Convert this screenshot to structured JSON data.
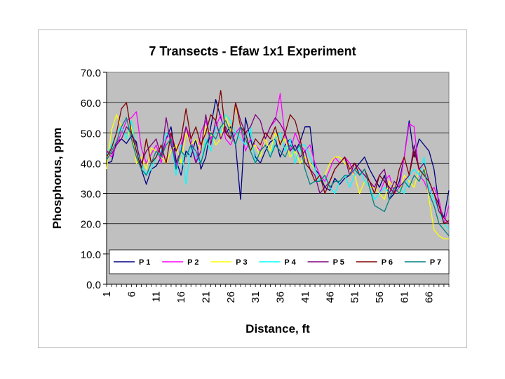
{
  "chart_data": {
    "type": "line",
    "title": "7 Transects - Efaw 1x1 Experiment",
    "xlabel": "Distance, ft",
    "ylabel": "Phosphorus, ppm",
    "ylim": [
      0,
      70
    ],
    "xlim": [
      1,
      70
    ],
    "yticks": [
      "0.0",
      "10.0",
      "20.0",
      "30.0",
      "40.0",
      "50.0",
      "60.0",
      "70.0"
    ],
    "xticks": [
      1,
      6,
      11,
      16,
      21,
      26,
      31,
      36,
      41,
      46,
      51,
      56,
      61,
      66
    ],
    "grid": true,
    "plot_background": "#c0c0c0",
    "legend_position": "bottom-inside",
    "series": [
      {
        "name": "P 1",
        "color": "#000080",
        "values": [
          40,
          40.5,
          47,
          48,
          46.5,
          49,
          47,
          38,
          33,
          38,
          39,
          42,
          48,
          52,
          41,
          36,
          44,
          42,
          48,
          38,
          42,
          52,
          61,
          55,
          50,
          52,
          46,
          28,
          55,
          48,
          42,
          40,
          44,
          47,
          48,
          42,
          46,
          48,
          44,
          47,
          52,
          52,
          38,
          36,
          32,
          31,
          35,
          33,
          35,
          36,
          38,
          40,
          42,
          38,
          35,
          32,
          36,
          28,
          30,
          34,
          42,
          54,
          42,
          48,
          46,
          44,
          38,
          26,
          22,
          31
        ]
      },
      {
        "name": "P 2",
        "color": "#ff00ff",
        "values": [
          44,
          42,
          46,
          50,
          54,
          55,
          57,
          45,
          40,
          43,
          46,
          40,
          48,
          50,
          39,
          46,
          52,
          48,
          40,
          50,
          54,
          48,
          52,
          56,
          48,
          46,
          50,
          52,
          44,
          48,
          46,
          44,
          48,
          52,
          54,
          63,
          48,
          44,
          50,
          46,
          44,
          46,
          40,
          36,
          34,
          38,
          42,
          40,
          42,
          40,
          36,
          38,
          36,
          34,
          32,
          30,
          34,
          36,
          30,
          32,
          42,
          53,
          52,
          36,
          34,
          30,
          32,
          28,
          20,
          26
        ]
      },
      {
        "name": "P 3",
        "color": "#ffff00",
        "values": [
          38,
          51,
          56,
          52,
          48,
          52,
          40,
          42,
          38,
          45,
          44,
          42,
          40,
          44,
          46,
          40,
          50,
          46,
          48,
          44,
          52,
          50,
          46,
          48,
          56,
          50,
          59,
          52,
          48,
          44,
          46,
          42,
          48,
          44,
          50,
          46,
          48,
          42,
          44,
          40,
          42,
          40,
          38,
          34,
          36,
          40,
          42,
          42,
          40,
          38,
          36,
          30,
          34,
          32,
          32,
          30,
          28,
          34,
          32,
          30,
          36,
          34,
          32,
          38,
          40,
          28,
          18,
          16,
          15,
          15
        ]
      },
      {
        "name": "P 4",
        "color": "#00ffff",
        "values": [
          42,
          46,
          50,
          52,
          48,
          54,
          44,
          40,
          36,
          38,
          42,
          44,
          50,
          48,
          36,
          46,
          33,
          46,
          42,
          40,
          48,
          44,
          52,
          50,
          56,
          54,
          50,
          48,
          46,
          52,
          40,
          44,
          46,
          42,
          48,
          50,
          44,
          48,
          40,
          46,
          46,
          42,
          38,
          34,
          36,
          32,
          30,
          34,
          36,
          32,
          36,
          38,
          34,
          32,
          28,
          30,
          32,
          30,
          34,
          32,
          30,
          36,
          38,
          36,
          42,
          32,
          28,
          24,
          20,
          18
        ]
      },
      {
        "name": "P 5",
        "color": "#800080",
        "values": [
          44,
          43,
          46,
          48,
          52,
          50,
          46,
          40,
          44,
          46,
          48,
          42,
          55,
          46,
          40,
          44,
          52,
          46,
          40,
          44,
          56,
          46,
          54,
          48,
          52,
          48,
          60,
          54,
          50,
          52,
          56,
          54,
          48,
          52,
          55,
          53,
          50,
          44,
          46,
          42,
          44,
          38,
          36,
          30,
          32,
          34,
          38,
          40,
          42,
          36,
          40,
          38,
          36,
          34,
          32,
          36,
          38,
          30,
          34,
          32,
          34,
          36,
          46,
          38,
          40,
          34,
          30,
          24,
          22,
          20
        ]
      },
      {
        "name": "P 6",
        "color": "#800000",
        "values": [
          42,
          45,
          50,
          58,
          60,
          50,
          44,
          38,
          48,
          40,
          42,
          46,
          40,
          50,
          44,
          48,
          58,
          48,
          52,
          46,
          50,
          56,
          54,
          64,
          50,
          48,
          60,
          52,
          50,
          44,
          48,
          46,
          50,
          48,
          52,
          46,
          50,
          56,
          54,
          48,
          40,
          38,
          34,
          36,
          30,
          34,
          38,
          40,
          42,
          38,
          40,
          36,
          38,
          34,
          30,
          36,
          34,
          32,
          30,
          38,
          42,
          36,
          44,
          38,
          36,
          34,
          30,
          26,
          20,
          21
        ]
      },
      {
        "name": "P 7",
        "color": "#008080",
        "values": [
          41,
          44,
          47,
          52,
          55,
          48,
          42,
          38,
          36,
          40,
          44,
          42,
          46,
          48,
          38,
          44,
          42,
          46,
          44,
          40,
          46,
          50,
          48,
          52,
          54,
          50,
          46,
          52,
          48,
          44,
          40,
          44,
          46,
          42,
          46,
          44,
          42,
          46,
          44,
          46,
          38,
          33,
          34,
          34,
          36,
          32,
          34,
          34,
          36,
          36,
          38,
          36,
          38,
          32,
          26,
          25,
          24,
          28,
          32,
          30,
          34,
          32,
          36,
          34,
          38,
          30,
          26,
          20,
          18,
          16
        ]
      }
    ]
  }
}
